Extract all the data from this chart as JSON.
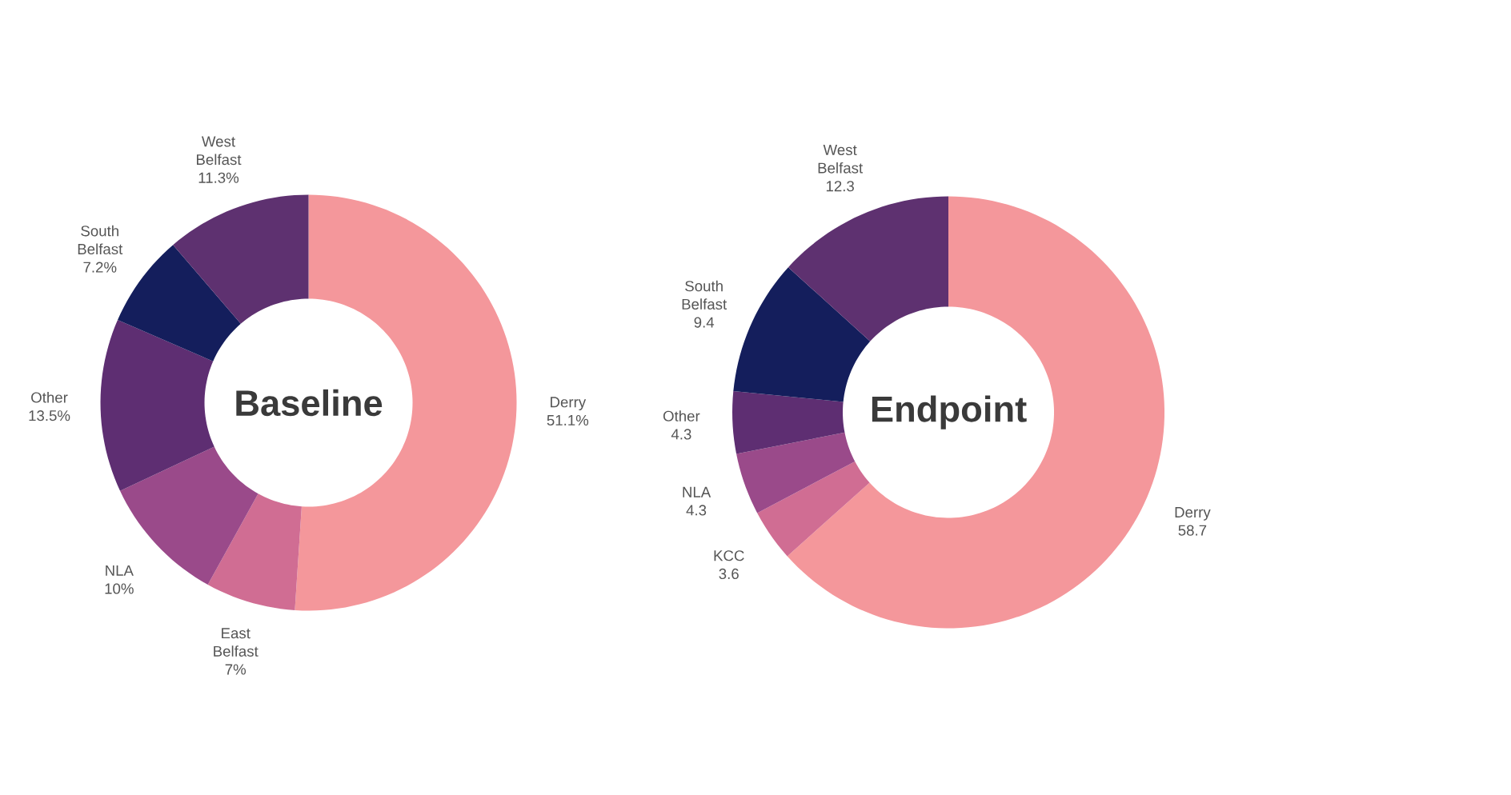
{
  "chart_data": [
    {
      "type": "donut",
      "title": "Baseline",
      "categories": [
        "Derry",
        "East Belfast",
        "NLA",
        "Other",
        "South Belfast",
        "West Belfast"
      ],
      "values": [
        51.1,
        7,
        10,
        13.5,
        7.2,
        11.3
      ],
      "value_labels": [
        "51.1%",
        "7%",
        "10%",
        "13.5%",
        "7.2%",
        "11.3%"
      ],
      "colors": [
        "#f4979b",
        "#d06d93",
        "#9a4a8a",
        "#5e2e72",
        "#141e5c",
        "#5e3170"
      ]
    },
    {
      "type": "donut",
      "title": "Endpoint",
      "categories": [
        "Derry",
        "KCC",
        "NLA",
        "Other",
        "South Belfast",
        "West Belfast"
      ],
      "values": [
        58.7,
        3.6,
        4.3,
        4.3,
        9.4,
        12.3
      ],
      "data_labels": true,
      "colors": [
        "#f4979b",
        "#d06d93",
        "#9a4a8a",
        "#5e2e72",
        "#141e5c",
        "#5e3170"
      ]
    }
  ]
}
